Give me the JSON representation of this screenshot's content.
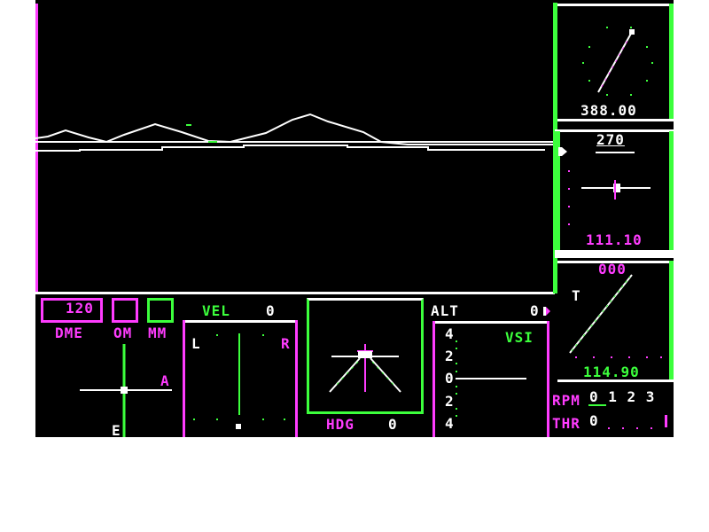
{
  "colors": {
    "background": "#000000",
    "white": "#ffffff",
    "magenta": "#ff3cff",
    "green": "#3cff3c",
    "page": "#ffffff"
  },
  "radio": {
    "dme_value": "120",
    "dme_label": "DME",
    "om_label": "OM",
    "mm_label": "MM",
    "e_marker": "E",
    "a_marker": "A"
  },
  "velocity": {
    "label": "VEL",
    "value": "0",
    "left_label": "L",
    "right_label": "R"
  },
  "heading": {
    "label": "HDG",
    "value": "0"
  },
  "altitude": {
    "label": "ALT",
    "value": "0",
    "vsi_label": "VSI",
    "scale": [
      "4",
      "2",
      "0",
      "2",
      "4"
    ]
  },
  "clock": {
    "readout": "388.00"
  },
  "nav": {
    "top_value": "270",
    "frequency": "111.10"
  },
  "adf": {
    "top_value": "000",
    "t_marker": "T",
    "frequency": "114.90"
  },
  "engine": {
    "rpm_label": "RPM",
    "rpm_scale": "0 1 2 3",
    "thr_label": "THR",
    "thr_scale": "0"
  }
}
